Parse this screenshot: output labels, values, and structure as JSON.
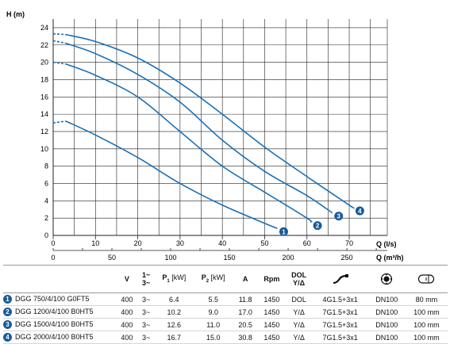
{
  "chart_data": {
    "type": "line",
    "ylabel": "H (m)",
    "xlabel": "Q (l/s)",
    "xlabel2": "Q (m³/h)",
    "xlim": [
      0,
      79
    ],
    "ylim": [
      0,
      25
    ],
    "x_ticks": [
      "0",
      "10",
      "20",
      "30",
      "40",
      "50",
      "60",
      "70"
    ],
    "y_ticks": [
      "0",
      "2",
      "4",
      "6",
      "8",
      "10",
      "12",
      "14",
      "16",
      "18",
      "20",
      "22",
      "24"
    ],
    "x2_ticks": [
      "0",
      "50",
      "100",
      "150",
      "200",
      "250"
    ],
    "grid": true,
    "series": [
      {
        "name": "1",
        "x": [
          0,
          3,
          10,
          20,
          30,
          40,
          50,
          53
        ],
        "y": [
          13.0,
          13.2,
          11.6,
          9.0,
          6.0,
          3.5,
          1.4,
          0.8
        ]
      },
      {
        "name": "2",
        "x": [
          0,
          3,
          10,
          20,
          30,
          40,
          50,
          60,
          61
        ],
        "y": [
          20.0,
          19.8,
          18.5,
          16.0,
          12.0,
          8.0,
          5.0,
          2.0,
          1.5
        ]
      },
      {
        "name": "3",
        "x": [
          0,
          3,
          10,
          20,
          30,
          40,
          50,
          60,
          66
        ],
        "y": [
          22.5,
          22.2,
          21.0,
          18.6,
          15.4,
          11.0,
          7.4,
          4.6,
          2.6
        ]
      },
      {
        "name": "4",
        "x": [
          0,
          3,
          10,
          20,
          30,
          40,
          50,
          60,
          70,
          71
        ],
        "y": [
          23.3,
          23.2,
          22.4,
          20.5,
          17.6,
          14.0,
          10.2,
          6.8,
          3.5,
          3.2
        ]
      }
    ]
  },
  "specs": {
    "headers": {
      "v": "V",
      "phase_top": "1~",
      "phase_bottom": "3~",
      "p1": "P",
      "p1_sub": "1",
      "p1_unit": "[kW]",
      "p2": "P",
      "p2_sub": "2",
      "p2_unit": "[kW]",
      "a": "A",
      "rpm": "Rpm",
      "dol_top": "DOL",
      "dol_bottom": "Y/Δ"
    },
    "icons": [
      "cable-icon",
      "outlet-flange-icon",
      "pipe-diameter-icon"
    ],
    "rows": [
      {
        "num": "1",
        "model": "DGG 750/4/100 G0FT5",
        "v": "400",
        "phase": "3~",
        "p1": "6.4",
        "p2": "5.5",
        "a": "11.8",
        "rpm": "1450",
        "start": "DOL",
        "cable": "4G1.5+3x1",
        "outlet": "DN100",
        "pipe": "80 mm"
      },
      {
        "num": "2",
        "model": "DGG 1200/4/100 B0HT5",
        "v": "400",
        "phase": "3~",
        "p1": "10.2",
        "p2": "9.0",
        "a": "17.0",
        "rpm": "1450",
        "start": "Y/Δ",
        "cable": "7G1.5+3x1",
        "outlet": "DN100",
        "pipe": "100 mm"
      },
      {
        "num": "3",
        "model": "DGG 1500/4/100 B0HT5",
        "v": "400",
        "phase": "3~",
        "p1": "12.6",
        "p2": "11.0",
        "a": "20.5",
        "rpm": "1450",
        "start": "Y/Δ",
        "cable": "7G1.5+3x1",
        "outlet": "DN100",
        "pipe": "100 mm"
      },
      {
        "num": "4",
        "model": "DGG 2000/4/100 B0HT5",
        "v": "400",
        "phase": "3~",
        "p1": "16.7",
        "p2": "15.0",
        "a": "30.8",
        "rpm": "1450",
        "start": "Y/Δ",
        "cable": "7G1.5+3x1",
        "outlet": "DN100",
        "pipe": "100 mm"
      }
    ]
  },
  "colors": {
    "curve": "#1a6fb5",
    "badge": "#1a5a96",
    "grid": "#222222"
  }
}
